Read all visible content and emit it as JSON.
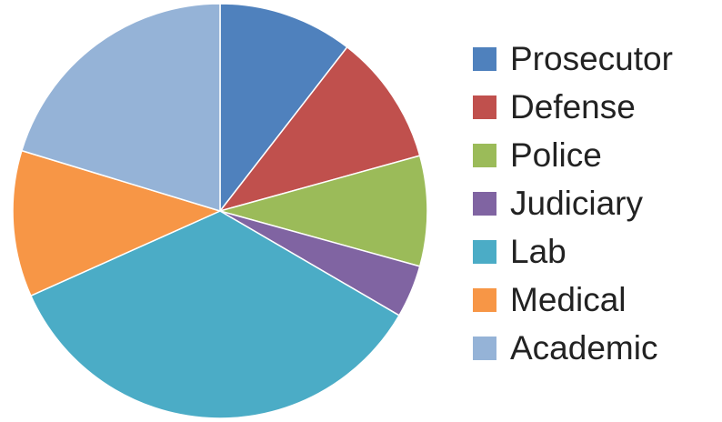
{
  "chart_data": {
    "type": "pie",
    "start_angle_deg": 0,
    "direction": "clockwise",
    "legend_position": "right",
    "series": [
      {
        "name": "",
        "slices": [
          {
            "label": "Prosecutor",
            "value": 10.5,
            "color": "#4F81BD"
          },
          {
            "label": "Defense",
            "value": 10.2,
            "color": "#C0504D"
          },
          {
            "label": "Police",
            "value": 8.6,
            "color": "#9BBB59"
          },
          {
            "label": "Judiciary",
            "value": 4.1,
            "color": "#8064A2"
          },
          {
            "label": "Lab",
            "value": 34.9,
            "color": "#4BACC6"
          },
          {
            "label": "Medical",
            "value": 11.4,
            "color": "#F79646"
          },
          {
            "label": "Academic",
            "value": 20.3,
            "color": "#95B3D7"
          }
        ]
      }
    ]
  }
}
